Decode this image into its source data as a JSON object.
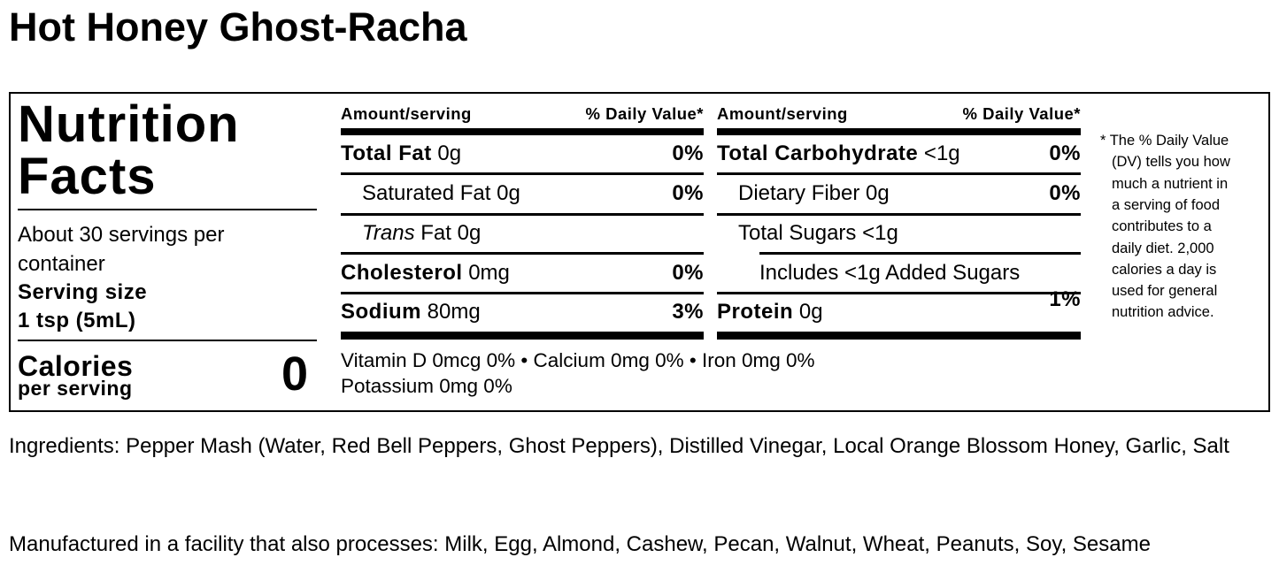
{
  "title": "Hot Honey Ghost-Racha",
  "label": {
    "heading_line1": "Nutrition",
    "heading_line2": "Facts",
    "servings_line1": "About 30 servings per",
    "servings_line2": "container",
    "serving_size_label": "Serving size",
    "serving_size_value": "1 tsp (5mL)",
    "calories_label": "Calories",
    "calories_sub": "per serving",
    "calories_value": "0",
    "col_header_amount": "Amount/serving",
    "col_header_dv": "% Daily Value*",
    "left_rows": [
      {
        "name": "Total Fat",
        "amount": "0g",
        "dv": "0%"
      },
      {
        "name": "Saturated Fat",
        "amount": "0g",
        "dv": "0%"
      },
      {
        "name": "Trans",
        "suffix": "Fat 0g",
        "dv": ""
      },
      {
        "name": "Cholesterol",
        "amount": "0mg",
        "dv": "0%"
      },
      {
        "name": "Sodium",
        "amount": "80mg",
        "dv": "3%"
      }
    ],
    "right_rows": [
      {
        "name": "Total Carbohydrate",
        "amount": "<1g",
        "dv": "0%"
      },
      {
        "name": "Dietary Fiber",
        "amount": "0g",
        "dv": "0%"
      },
      {
        "name": "Total Sugars",
        "amount": "<1g",
        "dv": ""
      },
      {
        "name": "Includes <1g Added Sugars",
        "amount": "",
        "dv": "1%"
      },
      {
        "name": "Protein",
        "amount": "0g",
        "dv": ""
      }
    ],
    "vitamins_line1": "Vitamin D 0mcg 0% • Calcium 0mg 0% • Iron 0mg 0%",
    "vitamins_line2": "Potassium 0mg 0%",
    "footnote_lines": [
      "* The % Daily Value",
      "(DV) tells you how",
      "much a nutrient in",
      "a serving of food",
      "contributes to a",
      "daily diet. 2,000",
      "calories a day is",
      "used for general",
      "nutrition advice."
    ]
  },
  "ingredients": "Ingredients: Pepper Mash (Water, Red Bell Peppers, Ghost Peppers), Distilled Vinegar, Local Orange Blossom Honey, Garlic, Salt",
  "allergens": "Manufactured in a facility that also processes: Milk, Egg, Almond, Cashew, Pecan, Walnut, Wheat, Peanuts, Soy, Sesame"
}
